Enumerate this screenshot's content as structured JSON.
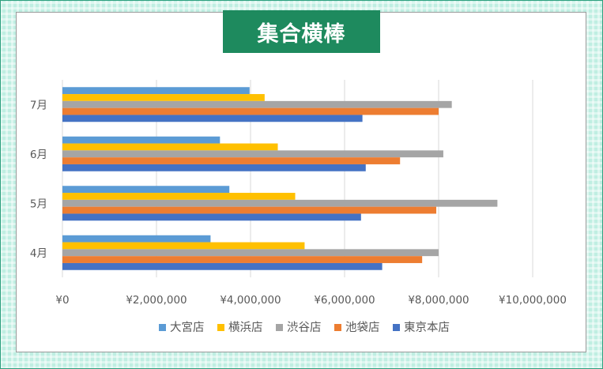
{
  "chart_data": {
    "type": "bar",
    "orientation": "horizontal",
    "title": "集合横棒",
    "categories": [
      "4月",
      "5月",
      "6月",
      "7月"
    ],
    "series": [
      {
        "name": "大宮店",
        "color": "#5b9bd5",
        "values": [
          3150000,
          3550000,
          3350000,
          3980000
        ]
      },
      {
        "name": "横浜店",
        "color": "#ffc000",
        "values": [
          5150000,
          4950000,
          4580000,
          4300000
        ]
      },
      {
        "name": "渋谷店",
        "color": "#a5a5a5",
        "values": [
          8000000,
          9250000,
          8100000,
          8280000
        ]
      },
      {
        "name": "池袋店",
        "color": "#ed7d31",
        "values": [
          7650000,
          7950000,
          7180000,
          8000000
        ]
      },
      {
        "name": "東京本店",
        "color": "#4472c4",
        "values": [
          6800000,
          6350000,
          6450000,
          6380000
        ]
      }
    ],
    "xlim": [
      0,
      10000000
    ],
    "x_ticks": [
      "¥0",
      "¥2,000,000",
      "¥4,000,000",
      "¥6,000,000",
      "¥8,000,000",
      "¥10,000,000"
    ],
    "grid": true,
    "legend_position": "bottom"
  }
}
